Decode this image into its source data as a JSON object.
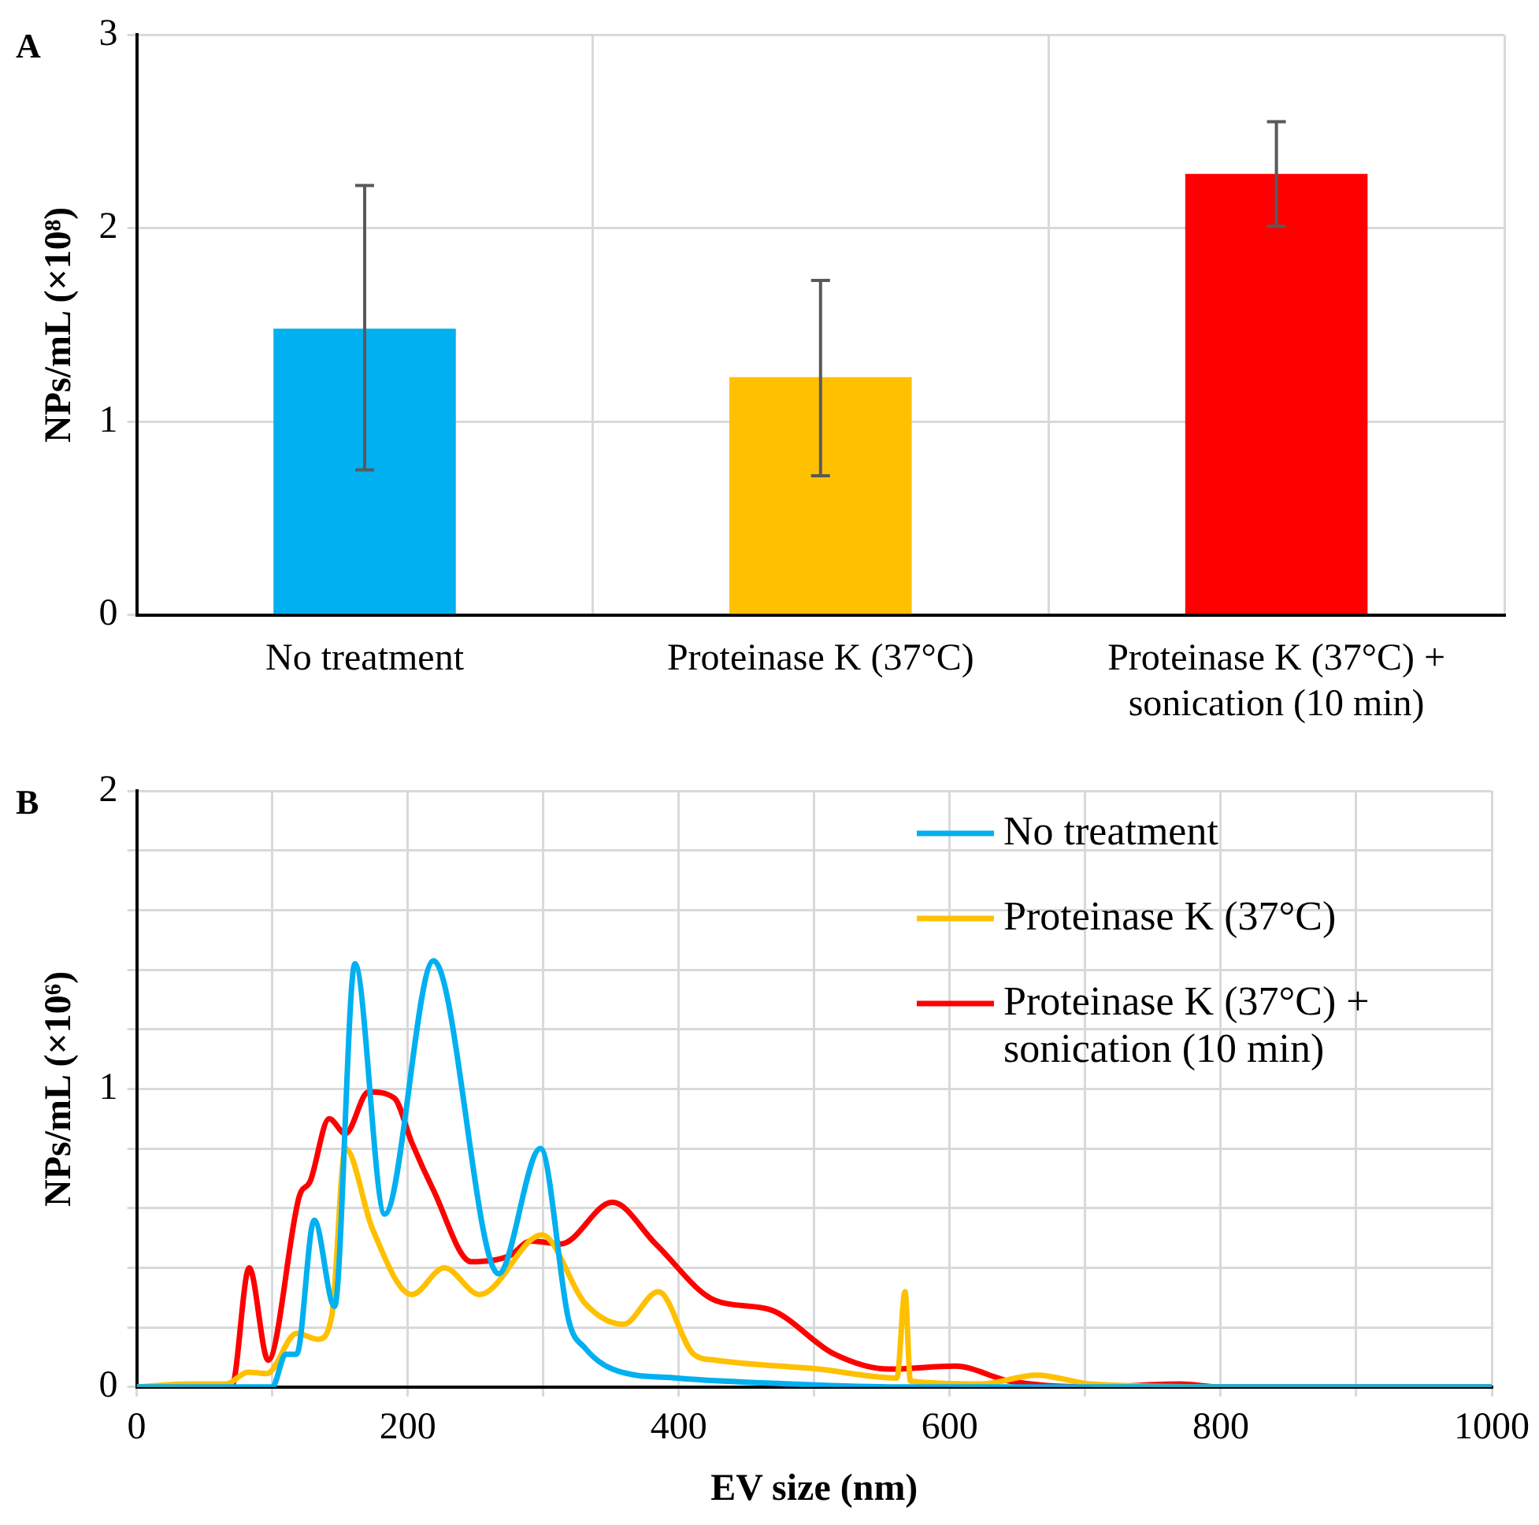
{
  "chart_data": [
    {
      "type": "bar",
      "annotations": [
        "A"
      ],
      "ylabel": "NPs/mL (×10⁸)",
      "categories": [
        "No treatment",
        "Proteinase K (37°C)",
        "Proteinase K (37°C) + sonication (10 min)"
      ],
      "values": [
        1.48,
        1.23,
        2.28
      ],
      "colors": [
        "#00b0f0",
        "#ffc000",
        "#ff0000"
      ],
      "errors": [
        [
          0.75,
          2.22
        ],
        [
          0.72,
          1.73
        ],
        [
          2.01,
          2.55
        ]
      ],
      "ylim": [
        0,
        3
      ],
      "yticks": [
        0,
        1,
        2,
        3
      ],
      "grid": true
    },
    {
      "type": "line",
      "annotations": [
        "B"
      ],
      "xlabel": "EV size (nm)",
      "ylabel": "NPs/mL (×10⁶)",
      "series": [
        {
          "name": "No treatment",
          "color": "#00b0f0",
          "x": [
            0,
            60,
            100,
            110,
            118,
            131,
            146,
            161,
            183,
            219,
            267,
            298,
            319,
            331,
            351,
            399,
            483,
            563,
            700,
            1000
          ],
          "values": [
            0,
            0,
            0,
            0.11,
            0.11,
            0.56,
            0.27,
            1.42,
            0.58,
            1.43,
            0.38,
            0.8,
            0.22,
            0.13,
            0.06,
            0.03,
            0.01,
            0,
            0,
            0
          ]
        },
        {
          "name": "Proteinase K (37°C)",
          "color": "#ffc000",
          "x": [
            0,
            38,
            66,
            82,
            96,
            118,
            134,
            144,
            154,
            174,
            203,
            227,
            253,
            299,
            331,
            359,
            385,
            411,
            427,
            503,
            561,
            567,
            571,
            623,
            664,
            704,
            800,
            1000
          ],
          "values": [
            0,
            0.01,
            0.01,
            0.05,
            0.045,
            0.18,
            0.16,
            0.24,
            0.8,
            0.53,
            0.31,
            0.4,
            0.31,
            0.51,
            0.28,
            0.21,
            0.32,
            0.11,
            0.09,
            0.06,
            0.03,
            0.32,
            0.02,
            0.01,
            0.04,
            0.01,
            0,
            0
          ]
        },
        {
          "name": "Proteinase K (37°C) + sonication (10 min)",
          "color": "#ff0000",
          "x": [
            0,
            70,
            83,
            97,
            120,
            128,
            142,
            154,
            171,
            190,
            203,
            219,
            247,
            275,
            291,
            313,
            351,
            383,
            427,
            467,
            515,
            555,
            604,
            644,
            704,
            770,
            800,
            1000
          ],
          "values": [
            0,
            0,
            0.4,
            0.09,
            0.64,
            0.69,
            0.9,
            0.85,
            0.99,
            0.97,
            0.82,
            0.66,
            0.42,
            0.44,
            0.49,
            0.48,
            0.62,
            0.48,
            0.29,
            0.26,
            0.11,
            0.06,
            0.07,
            0.02,
            0,
            0.01,
            0,
            0
          ]
        }
      ],
      "xlim": [
        0,
        1000
      ],
      "xticks": [
        0,
        {
          "value": 100,
          "label": null
        },
        200,
        {
          "value": 300,
          "label": null
        },
        400,
        {
          "value": 500,
          "label": null
        },
        600,
        {
          "value": 700,
          "label": null
        },
        800,
        {
          "value": 900,
          "label": null
        },
        1000
      ],
      "ylim": [
        0,
        2
      ],
      "yticks": [
        0,
        {
          "value": 0.2,
          "label": null
        },
        {
          "value": 0.4,
          "label": null
        },
        {
          "value": 0.6,
          "label": null
        },
        {
          "value": 0.8,
          "label": null
        },
        1,
        {
          "value": 1.2,
          "label": null
        },
        {
          "value": 1.4,
          "label": null
        },
        {
          "value": 1.6,
          "label": null
        },
        {
          "value": 1.8,
          "label": null
        },
        2
      ],
      "grid": true,
      "legend": "top right",
      "marker": "none",
      "line_style": "solid"
    }
  ]
}
